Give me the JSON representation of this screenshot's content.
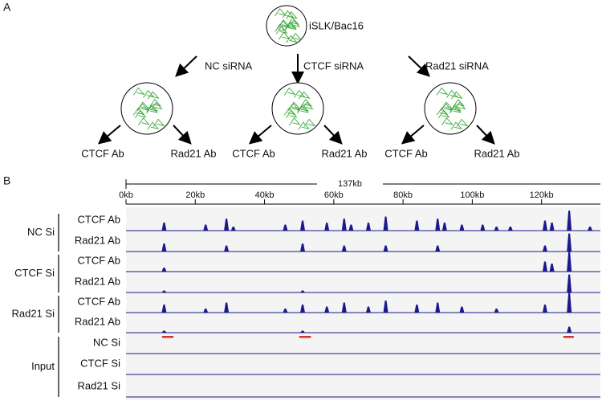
{
  "panel_a": {
    "label": "A",
    "root": "iSLK/Bac16",
    "arms": [
      {
        "treatment": "NC siRNA",
        "antibodies": [
          "CTCF Ab",
          "Rad21 Ab"
        ]
      },
      {
        "treatment": "CTCF siRNA",
        "antibodies": [
          "CTCF Ab",
          "Rad21 Ab"
        ]
      },
      {
        "treatment": "Rad21 siRNA",
        "antibodies": [
          "CTCF Ab",
          "Rad21 Ab"
        ]
      }
    ]
  },
  "panel_b": {
    "label": "B",
    "ruler": {
      "span_label": "137kb",
      "range": [
        0,
        137
      ],
      "ticks": [
        {
          "value": 0,
          "label": "0kb"
        },
        {
          "value": 20,
          "label": "20kb"
        },
        {
          "value": 40,
          "label": "40kb"
        },
        {
          "value": 60,
          "label": "60kb"
        },
        {
          "value": 80,
          "label": "80kb"
        },
        {
          "value": 100,
          "label": "100kb"
        },
        {
          "value": 120,
          "label": "120kb"
        }
      ]
    },
    "groups": [
      {
        "label": "NC Si",
        "tracks": [
          {
            "label": "CTCF Ab",
            "peaks": [
              [
                11,
                4
              ],
              [
                23,
                3
              ],
              [
                29,
                6
              ],
              [
                31,
                2
              ],
              [
                46,
                3
              ],
              [
                51,
                5
              ],
              [
                58,
                4
              ],
              [
                63,
                6
              ],
              [
                65,
                3
              ],
              [
                70,
                4
              ],
              [
                75,
                7
              ],
              [
                84,
                5
              ],
              [
                90,
                6
              ],
              [
                92,
                4
              ],
              [
                97,
                3
              ],
              [
                103,
                3
              ],
              [
                107,
                2
              ],
              [
                111,
                2
              ],
              [
                121,
                5
              ],
              [
                123,
                4
              ],
              [
                128,
                10
              ],
              [
                134,
                2
              ]
            ]
          },
          {
            "label": "Rad21 Ab",
            "peaks": [
              [
                11,
                4
              ],
              [
                29,
                3
              ],
              [
                51,
                4
              ],
              [
                63,
                3
              ],
              [
                75,
                3
              ],
              [
                90,
                3
              ],
              [
                121,
                3
              ],
              [
                128,
                9
              ]
            ]
          }
        ]
      },
      {
        "label": "CTCF Si",
        "tracks": [
          {
            "label": "CTCF Ab",
            "peaks": [
              [
                11,
                2
              ],
              [
                121,
                5
              ],
              [
                123,
                4
              ],
              [
                128,
                10
              ]
            ]
          },
          {
            "label": "Rad21 Ab",
            "peaks": [
              [
                11,
                1
              ],
              [
                51,
                1
              ],
              [
                128,
                9
              ]
            ]
          }
        ]
      },
      {
        "label": "Rad21 Si",
        "tracks": [
          {
            "label": "CTCF Ab",
            "peaks": [
              [
                11,
                4
              ],
              [
                23,
                2
              ],
              [
                29,
                5
              ],
              [
                46,
                2
              ],
              [
                51,
                4
              ],
              [
                58,
                3
              ],
              [
                63,
                5
              ],
              [
                70,
                3
              ],
              [
                75,
                6
              ],
              [
                84,
                4
              ],
              [
                90,
                5
              ],
              [
                97,
                3
              ],
              [
                107,
                2
              ],
              [
                121,
                4
              ],
              [
                128,
                10
              ]
            ]
          },
          {
            "label": "Rad21 Ab",
            "peaks": [
              [
                11,
                1
              ],
              [
                51,
                1
              ],
              [
                128,
                3
              ]
            ]
          }
        ]
      },
      {
        "label": "Input",
        "tracks": [
          {
            "label": "NC Si",
            "peaks": []
          },
          {
            "label": "CTCF Si",
            "peaks": []
          },
          {
            "label": "Rad21 Si",
            "peaks": []
          }
        ]
      }
    ],
    "regions": [
      [
        10.4,
        13.7
      ],
      [
        50,
        53.4
      ],
      [
        126.3,
        129.3
      ]
    ]
  }
}
